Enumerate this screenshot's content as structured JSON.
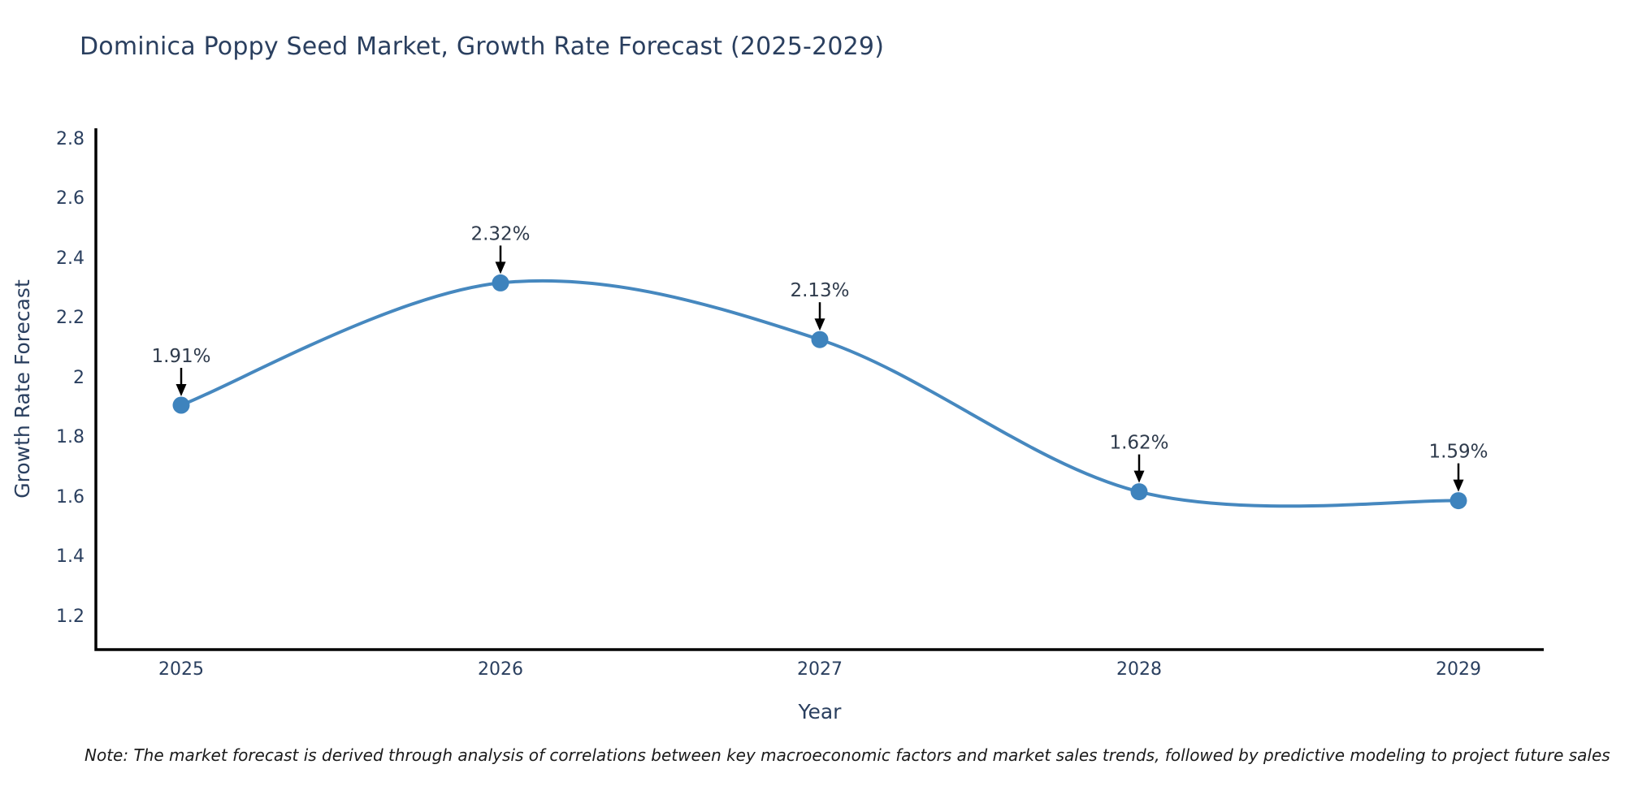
{
  "title": "Dominica Poppy Seed Market, Growth Rate Forecast (2025-2029)",
  "note": "Note: The market forecast is derived through analysis of correlations between key macroeconomic factors and market sales trends, followed by predictive modeling to project future sales",
  "colors": {
    "background": "#ffffff",
    "line": "#4688bf",
    "marker": "#3e83bd",
    "axis": "#000000",
    "arrow": "#000000",
    "text": "#2a3f5f",
    "annotation_text": "#2f3b4c",
    "note_text": "#1a1a1a"
  },
  "chart_data": {
    "type": "line",
    "title": "Dominica Poppy Seed Market, Growth Rate Forecast (2025-2029)",
    "xlabel": "Year",
    "ylabel": "Growth Rate Forecast",
    "x": [
      2025,
      2026,
      2027,
      2028,
      2029
    ],
    "values": [
      1.91,
      2.32,
      2.13,
      1.62,
      1.59
    ],
    "unit": "%",
    "point_labels": [
      "1.91%",
      "2.32%",
      "2.13%",
      "1.62%",
      "1.59%"
    ],
    "x_tick_labels": [
      "2025",
      "2026",
      "2027",
      "2028",
      "2029"
    ],
    "y_ticks": [
      1.2,
      1.4,
      1.6,
      1.8,
      2.0,
      2.2,
      2.4,
      2.6,
      2.8
    ],
    "y_tick_labels": [
      "1.2",
      "1.4",
      "1.6",
      "1.8",
      "2",
      "2.2",
      "2.4",
      "2.6",
      "2.8"
    ],
    "ylim": [
      1.09,
      2.84
    ],
    "line_shape": "spline",
    "markers": true,
    "grid": false,
    "legend": "none",
    "annotations": "each point labeled with its value and a downward black arrow"
  }
}
